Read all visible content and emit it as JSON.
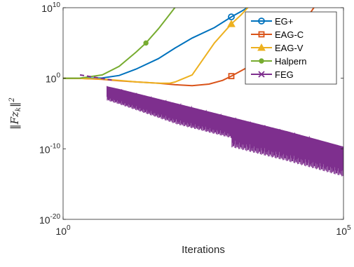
{
  "chart_data": {
    "type": "line",
    "xlabel": "Iterations",
    "ylabel": "||Fz_k||^2",
    "x_scale": "log",
    "y_scale": "log",
    "xlim": [
      1,
      100000
    ],
    "ylim": [
      1e-20,
      10000000000.0
    ],
    "x_ticks": [
      {
        "value": 1,
        "base": "10",
        "exp": "0"
      },
      {
        "value": 100000,
        "base": "10",
        "exp": "5"
      }
    ],
    "y_ticks": [
      {
        "value": 10000000000.0,
        "base": "10",
        "exp": "10"
      },
      {
        "value": 1,
        "base": "10",
        "exp": "0"
      },
      {
        "value": 1e-10,
        "base": "10",
        "exp": "-10"
      },
      {
        "value": 1e-20,
        "base": "10",
        "exp": "-20"
      }
    ],
    "grid": false,
    "legend_position": "top-right",
    "series": [
      {
        "name": "EG+",
        "color": "#0072BD",
        "marker": "circle",
        "points": [
          [
            1,
            1
          ],
          [
            2,
            0.95
          ],
          [
            5,
            1.1
          ],
          [
            10,
            2.5
          ],
          [
            20,
            20
          ],
          [
            50,
            600
          ],
          [
            100,
            20000.0
          ],
          [
            200,
            500000.0
          ],
          [
            500,
            15000000.0
          ],
          [
            1000,
            500000000.0
          ],
          [
            1500,
            3000000000.0
          ],
          [
            2000,
            12000000000.0
          ]
        ],
        "marker_points": [
          [
            1000,
            500000000.0
          ]
        ]
      },
      {
        "name": "EAG-C",
        "color": "#D95319",
        "marker": "square",
        "points": [
          [
            1,
            1
          ],
          [
            2,
            0.95
          ],
          [
            5,
            0.7
          ],
          [
            10,
            0.45
          ],
          [
            20,
            0.3
          ],
          [
            50,
            0.2
          ],
          [
            100,
            0.12
          ],
          [
            200,
            0.09
          ],
          [
            400,
            0.15
          ],
          [
            700,
            0.5
          ],
          [
            1000,
            2
          ],
          [
            2000,
            40
          ],
          [
            5000,
            2000
          ],
          [
            10000,
            100000.0
          ],
          [
            15000,
            2000000.0
          ],
          [
            20000,
            100000000.0
          ],
          [
            30000,
            12000000000.0
          ]
        ],
        "marker_points": [
          [
            1000,
            2
          ]
        ]
      },
      {
        "name": "EAG-V",
        "color": "#EDB120",
        "marker": "triangle",
        "points": [
          [
            1,
            1
          ],
          [
            2,
            0.95
          ],
          [
            5,
            0.75
          ],
          [
            10,
            0.5
          ],
          [
            20,
            0.3
          ],
          [
            50,
            0.2
          ],
          [
            80,
            0.2
          ],
          [
            100,
            0.3
          ],
          [
            200,
            3
          ],
          [
            500,
            100000.0
          ],
          [
            1000,
            50000000.0
          ],
          [
            1500,
            1000000000.0
          ],
          [
            2000,
            12000000000.0
          ]
        ],
        "marker_points": [
          [
            1000,
            50000000.0
          ]
        ]
      },
      {
        "name": "Halpern",
        "color": "#77AC30",
        "marker": "dot",
        "points": [
          [
            1,
            1
          ],
          [
            2,
            1.05
          ],
          [
            5,
            3
          ],
          [
            10,
            50
          ],
          [
            20,
            5000
          ],
          [
            30,
            100000.0
          ],
          [
            50,
            10000000.0
          ],
          [
            70,
            300000000.0
          ],
          [
            100,
            12000000000.0
          ]
        ],
        "marker_points": [
          [
            30,
            100000.0
          ]
        ]
      },
      {
        "name": "FEG",
        "color": "#7E2F8E",
        "marker": "x",
        "points": [
          [
            1,
            1
          ],
          [
            100000,
            1e-13
          ]
        ],
        "marker_points": [],
        "trend_note_start": [
          [
            1,
            1
          ],
          [
            2,
            0.6
          ],
          [
            3,
            0.3
          ],
          [
            5,
            0.1
          ],
          [
            10,
            0.03
          ],
          [
            100,
            0.0003
          ],
          [
            1000,
            3e-06
          ],
          [
            10000,
            3e-08
          ],
          [
            100000,
            2e-10
          ]
        ]
      }
    ]
  }
}
